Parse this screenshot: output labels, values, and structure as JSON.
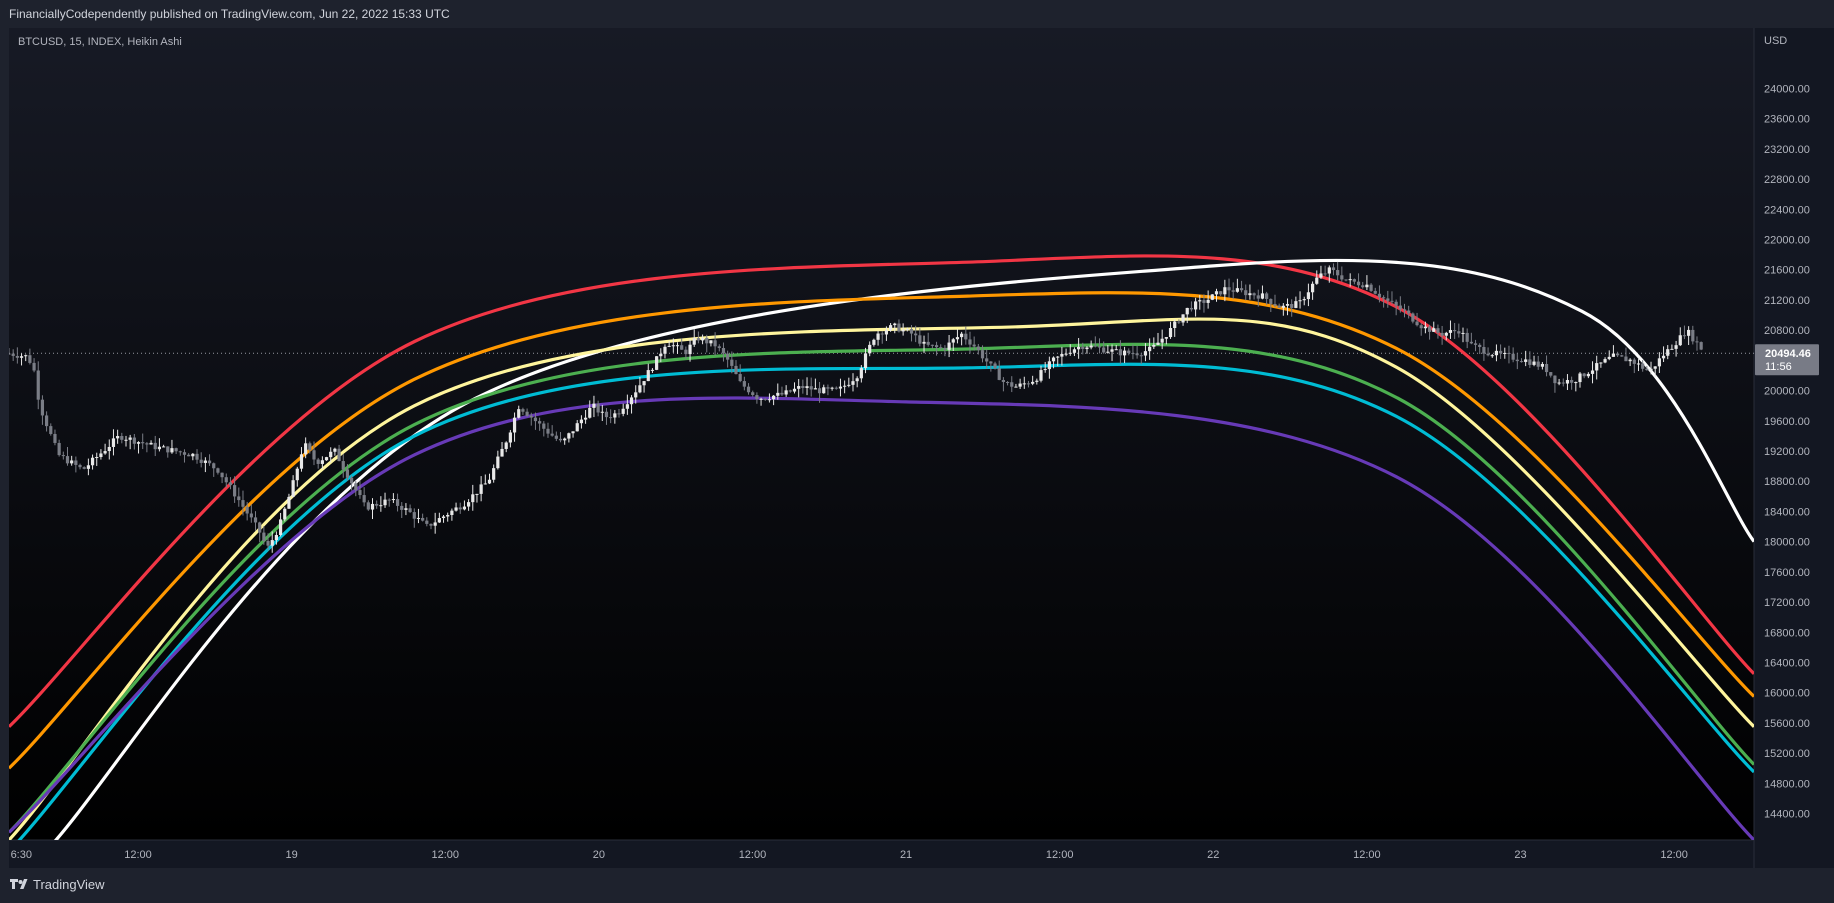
{
  "header": {
    "published": "FinanciallyCodependently published on TradingView.com, Jun 22, 2022 15:33 UTC"
  },
  "footer": {
    "brand": "TradingView"
  },
  "chart_data": {
    "type": "candlestick",
    "symbol_label": "BTCUSD, 15, INDEX, Heikin Ashi",
    "currency": "USD",
    "last_price": "20494.46",
    "countdown": "11:56",
    "y_ticks": [
      "24000.00",
      "23600.00",
      "23200.00",
      "22800.00",
      "22400.00",
      "22000.00",
      "21600.00",
      "21200.00",
      "20800.00",
      "20400.00",
      "20000.00",
      "19600.00",
      "19200.00",
      "18800.00",
      "18400.00",
      "18000.00",
      "17600.00",
      "17200.00",
      "16800.00",
      "16400.00",
      "16000.00",
      "15600.00",
      "15200.00",
      "14800.00",
      "14400.00"
    ],
    "ylim": [
      14050,
      24800
    ],
    "x_ticks": [
      "6:30",
      "12:00",
      "19",
      "12:00",
      "20",
      "12:00",
      "21",
      "12:00",
      "22",
      "12:00",
      "23",
      "12:00"
    ],
    "x_tick_pos": [
      -0.2,
      0.75,
      2,
      3.25,
      4.5,
      5.75,
      7,
      8.25,
      9.5,
      10.75,
      12,
      13.25
    ],
    "xlim": [
      -0.3,
      13.9
    ],
    "price_path": [
      [
        -0.3,
        20490
      ],
      [
        -0.15,
        20450
      ],
      [
        -0.1,
        20300
      ],
      [
        -0.05,
        19800
      ],
      [
        0.1,
        19150
      ],
      [
        0.3,
        18950
      ],
      [
        0.6,
        19400
      ],
      [
        0.9,
        19250
      ],
      [
        1.2,
        19150
      ],
      [
        1.4,
        18950
      ],
      [
        1.55,
        18600
      ],
      [
        1.75,
        18100
      ],
      [
        1.8,
        17900
      ],
      [
        1.9,
        18200
      ],
      [
        2.0,
        18700
      ],
      [
        2.1,
        19300
      ],
      [
        2.2,
        19050
      ],
      [
        2.35,
        19200
      ],
      [
        2.45,
        18900
      ],
      [
        2.6,
        18450
      ],
      [
        2.8,
        18550
      ],
      [
        2.95,
        18400
      ],
      [
        3.1,
        18200
      ],
      [
        3.25,
        18350
      ],
      [
        3.4,
        18500
      ],
      [
        3.6,
        18800
      ],
      [
        3.75,
        19350
      ],
      [
        3.85,
        19800
      ],
      [
        3.95,
        19650
      ],
      [
        4.05,
        19500
      ],
      [
        4.2,
        19300
      ],
      [
        4.35,
        19600
      ],
      [
        4.45,
        19800
      ],
      [
        4.55,
        19650
      ],
      [
        4.65,
        19700
      ],
      [
        4.8,
        20000
      ],
      [
        4.95,
        20350
      ],
      [
        5.05,
        20650
      ],
      [
        5.2,
        20500
      ],
      [
        5.3,
        20700
      ],
      [
        5.45,
        20600
      ],
      [
        5.55,
        20400
      ],
      [
        5.65,
        20100
      ],
      [
        5.8,
        19900
      ],
      [
        6.0,
        19950
      ],
      [
        6.15,
        20050
      ],
      [
        6.3,
        20000
      ],
      [
        6.45,
        20000
      ],
      [
        6.6,
        20200
      ],
      [
        6.75,
        20750
      ],
      [
        6.9,
        20850
      ],
      [
        7.05,
        20750
      ],
      [
        7.15,
        20600
      ],
      [
        7.3,
        20550
      ],
      [
        7.45,
        20750
      ],
      [
        7.55,
        20600
      ],
      [
        7.65,
        20400
      ],
      [
        7.8,
        20100
      ],
      [
        7.9,
        20050
      ],
      [
        8.05,
        20150
      ],
      [
        8.2,
        20400
      ],
      [
        8.35,
        20550
      ],
      [
        8.45,
        20600
      ],
      [
        8.6,
        20550
      ],
      [
        8.75,
        20500
      ],
      [
        8.9,
        20500
      ],
      [
        9.0,
        20550
      ],
      [
        9.15,
        20800
      ],
      [
        9.3,
        21100
      ],
      [
        9.45,
        21200
      ],
      [
        9.6,
        21350
      ],
      [
        9.75,
        21300
      ],
      [
        9.9,
        21250
      ],
      [
        10.05,
        21100
      ],
      [
        10.2,
        21150
      ],
      [
        10.35,
        21500
      ],
      [
        10.45,
        21600
      ],
      [
        10.6,
        21450
      ],
      [
        10.75,
        21400
      ],
      [
        10.9,
        21200
      ],
      [
        11.05,
        21050
      ],
      [
        11.2,
        20850
      ],
      [
        11.35,
        20750
      ],
      [
        11.5,
        20800
      ],
      [
        11.6,
        20600
      ],
      [
        11.75,
        20500
      ],
      [
        11.9,
        20450
      ],
      [
        12.05,
        20400
      ],
      [
        12.2,
        20300
      ],
      [
        12.3,
        20100
      ],
      [
        12.45,
        20150
      ],
      [
        12.6,
        20300
      ],
      [
        12.75,
        20450
      ],
      [
        12.9,
        20400
      ],
      [
        13.05,
        20250
      ],
      [
        13.15,
        20450
      ],
      [
        13.3,
        20700
      ],
      [
        13.35,
        20800
      ],
      [
        13.5,
        20500
      ]
    ],
    "arcs": [
      {
        "color": "#f23645",
        "points": [
          [
            -0.3,
            15550
          ],
          [
            3,
            20650
          ],
          [
            7.5,
            21700
          ],
          [
            11,
            21100
          ],
          [
            13.9,
            16250
          ]
        ]
      },
      {
        "color": "#ffffff",
        "points": [
          [
            0,
            13900
          ],
          [
            3.5,
            19900
          ],
          [
            9.5,
            21650
          ],
          [
            12.5,
            21050
          ],
          [
            13.9,
            18000
          ]
        ]
      },
      {
        "color": "#ff9800",
        "points": [
          [
            -0.3,
            15000
          ],
          [
            3,
            20150
          ],
          [
            7.5,
            21250
          ],
          [
            11,
            20550
          ],
          [
            13.9,
            15950
          ]
        ]
      },
      {
        "color": "#fff59d",
        "points": [
          [
            -0.3,
            14050
          ],
          [
            3,
            19800
          ],
          [
            8,
            20850
          ],
          [
            11,
            20300
          ],
          [
            13.9,
            15550
          ]
        ]
      },
      {
        "color": "#4caf50",
        "points": [
          [
            -0.3,
            14150
          ],
          [
            3,
            19550
          ],
          [
            7.5,
            20550
          ],
          [
            11,
            19900
          ],
          [
            13.9,
            15050
          ]
        ]
      },
      {
        "color": "#00bcd4",
        "points": [
          [
            -0.3,
            13900
          ],
          [
            3,
            19400
          ],
          [
            7.5,
            20300
          ],
          [
            11,
            19650
          ],
          [
            13.9,
            14950
          ]
        ]
      },
      {
        "color": "#673ab7",
        "points": [
          [
            -0.3,
            14150
          ],
          [
            3,
            19150
          ],
          [
            7,
            19850
          ],
          [
            11,
            18850
          ],
          [
            13.9,
            14050
          ]
        ]
      }
    ]
  }
}
